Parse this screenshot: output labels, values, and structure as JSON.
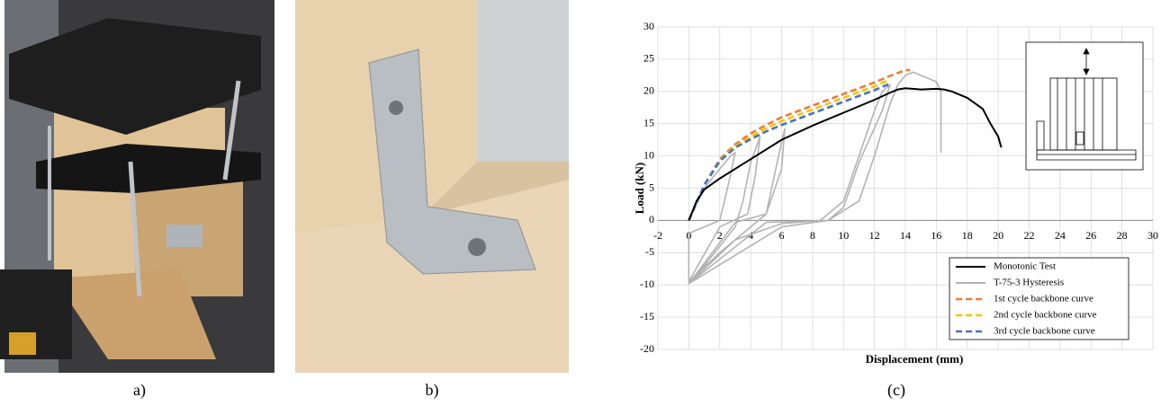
{
  "captions": {
    "a": "a)",
    "b": "b)",
    "c": "(c)"
  },
  "chart_data": {
    "type": "line",
    "x_label": "Displacement (mm)",
    "y_label": "Load (kN)",
    "xlim": [
      -2,
      30
    ],
    "ylim": [
      -20,
      30
    ],
    "xticks": [
      -2,
      0,
      2,
      4,
      6,
      8,
      10,
      12,
      14,
      16,
      18,
      20,
      22,
      24,
      26,
      28,
      30
    ],
    "yticks": [
      -20,
      -15,
      -10,
      -5,
      0,
      5,
      10,
      15,
      20,
      25,
      30
    ],
    "grid": true,
    "legend": "lower right",
    "series": [
      {
        "name": "Monotonic Test",
        "color": "#000000",
        "dashed": false,
        "x": [
          0,
          0.5,
          1,
          2,
          3,
          4,
          5,
          6,
          8,
          10,
          12,
          13,
          13.5,
          14,
          15,
          16,
          16.5,
          17,
          18,
          19,
          19.5,
          20,
          20.2
        ],
        "values": [
          0,
          3,
          4.8,
          6.5,
          8,
          9.5,
          11,
          12.5,
          14.7,
          16.7,
          18.7,
          19.8,
          20.3,
          20.5,
          20.3,
          20.4,
          20.3,
          20,
          19,
          17.3,
          15,
          13,
          11.3
        ]
      },
      {
        "name": "T-75-3 Hysteresis",
        "color": "#b3b3b3",
        "dashed": false,
        "x": [
          0,
          1,
          2,
          2.7,
          3,
          2.5,
          2,
          1,
          0,
          0,
          1,
          2,
          3,
          3.5,
          4,
          4.5,
          4.6,
          4.3,
          3.8,
          2,
          0,
          2,
          4,
          5,
          5.8,
          6.2,
          6,
          5,
          3,
          0,
          3,
          6,
          8.5,
          10,
          11,
          12,
          12.5,
          13,
          12.5,
          11,
          10,
          9,
          5,
          0,
          6,
          9,
          11,
          12,
          13,
          13.5,
          14,
          14.5,
          15,
          16,
          16.3,
          16.3
        ],
        "values": [
          0,
          5,
          8,
          10,
          10.5,
          5,
          0,
          -1,
          -2,
          -9.8,
          -7,
          -4,
          -1,
          3,
          9,
          12.3,
          13,
          7,
          1,
          -1,
          -9.5,
          -5,
          -1,
          1,
          10,
          14.2,
          8,
          1,
          -0.3,
          -9.8,
          -3,
          -0.5,
          0,
          3,
          10,
          17,
          20,
          21,
          17,
          9,
          2,
          0,
          -0.3,
          -9.8,
          -1,
          0,
          3,
          10,
          18,
          21,
          22.5,
          23,
          22.5,
          21.5,
          20,
          10.5
        ]
      },
      {
        "name": "1st cycle backbone curve",
        "color": "#ed7d31",
        "dashed": true,
        "x": [
          0,
          1,
          2,
          3,
          4,
          5,
          6,
          8,
          10,
          12,
          13,
          14,
          14.3
        ],
        "values": [
          0,
          5.5,
          9.5,
          11.8,
          13.5,
          14.8,
          16,
          17.8,
          19.6,
          21.4,
          22.4,
          23.3,
          23.3
        ]
      },
      {
        "name": "2nd cycle backbone curve",
        "color": "#ffc000",
        "dashed": true,
        "x": [
          0,
          1,
          2,
          3,
          4,
          5,
          6,
          8,
          10,
          12,
          13
        ],
        "values": [
          0,
          5.5,
          9.3,
          11.5,
          13,
          14.3,
          15.4,
          17.2,
          19,
          20.8,
          21.8
        ]
      },
      {
        "name": "3rd cycle backbone curve",
        "color": "#4472c4",
        "dashed": true,
        "x": [
          0,
          1,
          2,
          3,
          4,
          5,
          6,
          8,
          10,
          12,
          13
        ],
        "values": [
          0,
          5.5,
          9.2,
          11.3,
          12.6,
          13.8,
          14.8,
          16.6,
          18.4,
          20.2,
          21.2
        ]
      }
    ]
  }
}
